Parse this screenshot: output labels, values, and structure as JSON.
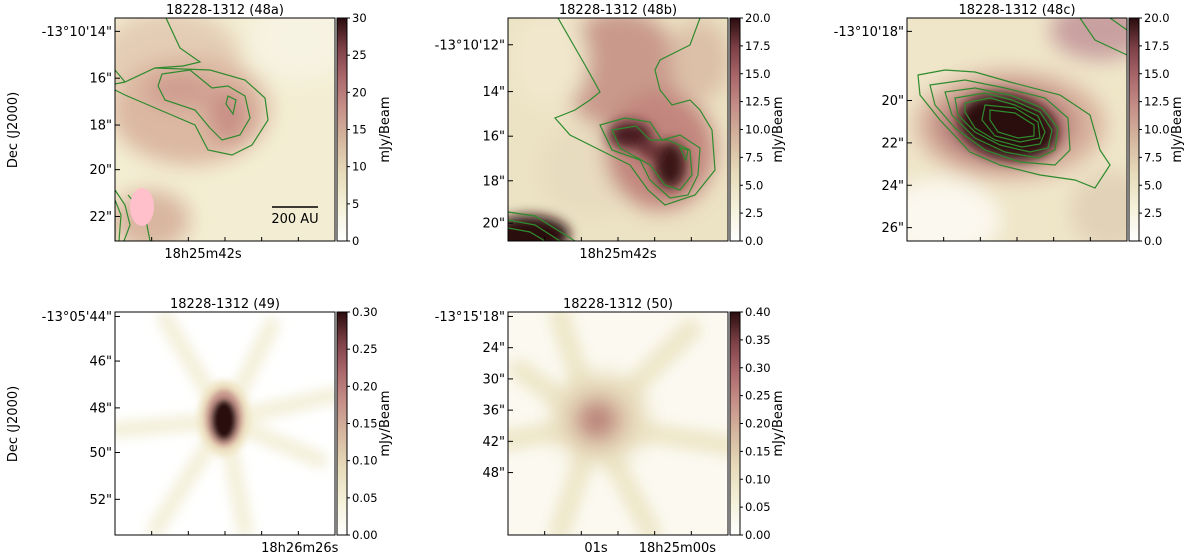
{
  "chart_data": [
    {
      "type": "heatmap",
      "title": "18228-1312 (48a)",
      "ylabel": "Dec (J2000)",
      "y_ticks": [
        "-13°10'14\"",
        "16\"",
        "18\"",
        "20\"",
        "22\""
      ],
      "x_ticks": [
        "18h25m42s"
      ],
      "colorbar_label": "mJy/Beam",
      "colorbar_range": [
        0,
        30
      ],
      "colorbar_ticks": [
        "0",
        "5",
        "10",
        "15",
        "20",
        "25",
        "30"
      ],
      "scalebar_label": "200 AU",
      "beam_color": "#ffc0cb",
      "contours": true
    },
    {
      "type": "heatmap",
      "title": "18228-1312 (48b)",
      "ylabel": "",
      "y_ticks": [
        "-13°10'12\"",
        "14\"",
        "16\"",
        "18\"",
        "20\""
      ],
      "x_ticks": [
        "18h25m42s"
      ],
      "colorbar_label": "mJy/Beam",
      "colorbar_range": [
        0,
        20
      ],
      "colorbar_ticks": [
        "0.0",
        "2.5",
        "5.0",
        "7.5",
        "10.0",
        "12.5",
        "15.0",
        "17.5",
        "20.0"
      ],
      "contours": true
    },
    {
      "type": "heatmap",
      "title": "18228-1312 (48c)",
      "ylabel": "",
      "y_ticks": [
        "-13°10'18\"",
        "20\"",
        "22\"",
        "24\"",
        "26\""
      ],
      "x_ticks": [],
      "colorbar_label": "mJy/Beam",
      "colorbar_range": [
        0,
        20
      ],
      "colorbar_ticks": [
        "0.0",
        "2.5",
        "5.0",
        "7.5",
        "10.0",
        "12.5",
        "15.0",
        "17.5",
        "20.0"
      ],
      "contours": true
    },
    {
      "type": "heatmap",
      "title": "18228-1312 (49)",
      "ylabel": "Dec (J2000)",
      "y_ticks": [
        "-13°05'44\"",
        "46\"",
        "48\"",
        "50\"",
        "52\""
      ],
      "x_ticks": [
        "18h26m26s"
      ],
      "colorbar_label": "mJy/Beam",
      "colorbar_range": [
        0,
        0.3
      ],
      "colorbar_ticks": [
        "0.00",
        "0.05",
        "0.10",
        "0.15",
        "0.20",
        "0.25",
        "0.30"
      ],
      "contours": false
    },
    {
      "type": "heatmap",
      "title": "18228-1312 (50)",
      "ylabel": "",
      "y_ticks": [
        "-13°15'18\"",
        "24\"",
        "30\"",
        "36\"",
        "42\"",
        "48\""
      ],
      "x_ticks": [
        "01s",
        "18h25m00s"
      ],
      "colorbar_label": "mJy/Beam",
      "colorbar_range": [
        0,
        0.4
      ],
      "colorbar_ticks": [
        "0.00",
        "0.05",
        "0.10",
        "0.15",
        "0.20",
        "0.25",
        "0.30",
        "0.35",
        "0.40"
      ],
      "contours": false
    }
  ],
  "colormap": [
    "#ffffff",
    "#f5f2dc",
    "#e7dcbb",
    "#d6b8a0",
    "#c58f88",
    "#a9666a",
    "#7a3f45",
    "#2a0c0e"
  ],
  "contour_color": "#2e8b2e"
}
